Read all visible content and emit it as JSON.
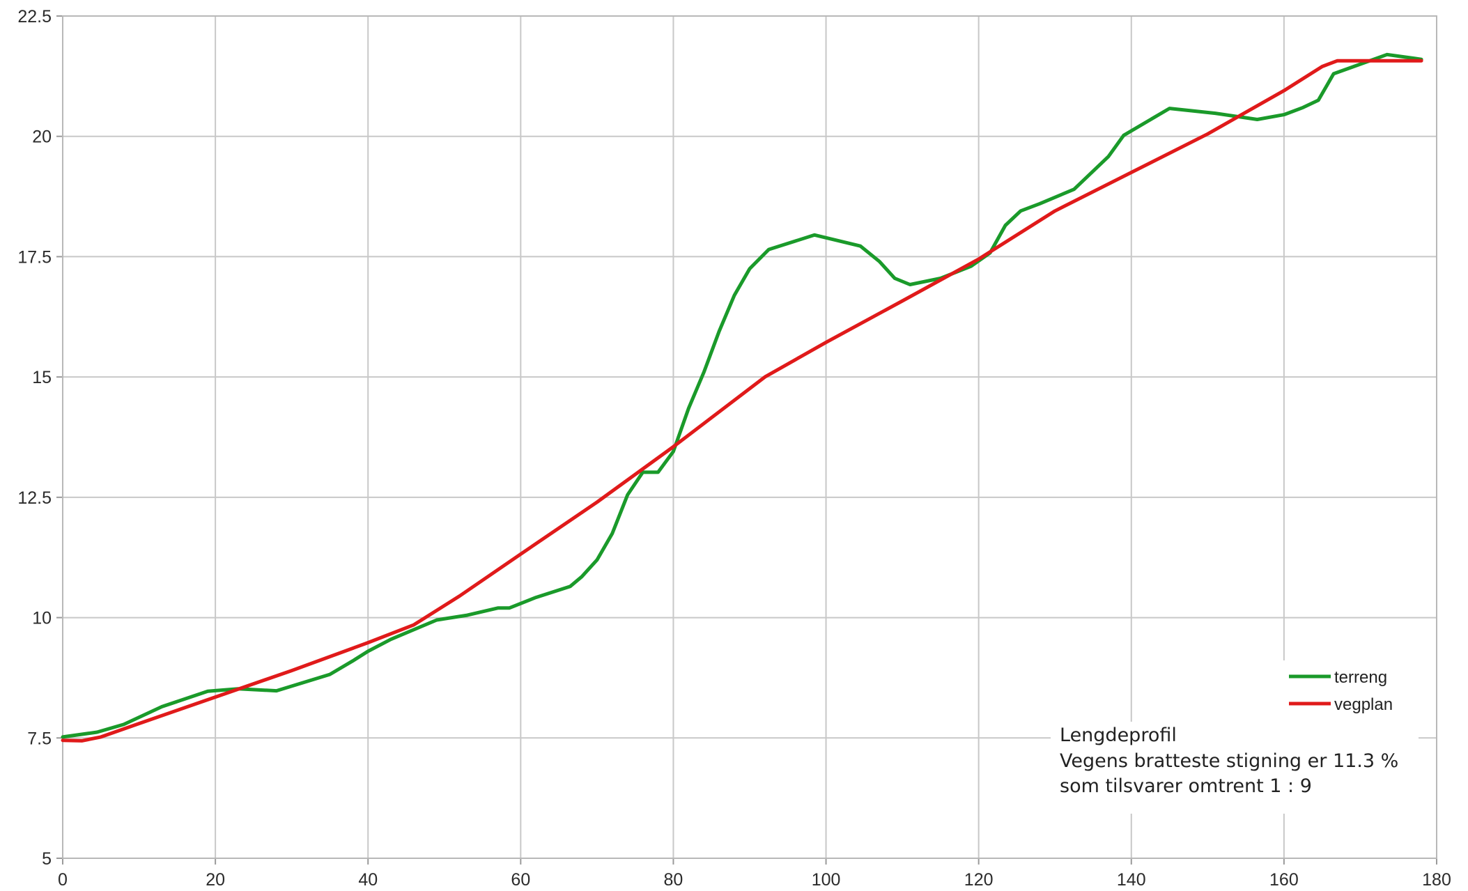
{
  "chart_data": {
    "type": "line",
    "xlim": [
      0,
      180
    ],
    "ylim": [
      5,
      22.5
    ],
    "x_ticks": [
      "0",
      "20",
      "40",
      "60",
      "80",
      "100",
      "120",
      "140",
      "160",
      "180"
    ],
    "y_ticks": [
      "5",
      "7.5",
      "10",
      "12.5",
      "15",
      "17.5",
      "20",
      "22.5"
    ],
    "x_tick_values": [
      0,
      20,
      40,
      60,
      80,
      100,
      120,
      140,
      160,
      180
    ],
    "y_tick_values": [
      5,
      7.5,
      10,
      12.5,
      15,
      17.5,
      20,
      22.5
    ],
    "grid": true,
    "legend_position": "bottom-right",
    "series": [
      {
        "name": "terreng",
        "color": "#1a9a2a",
        "points": [
          [
            0,
            7.52
          ],
          [
            4.5,
            7.62
          ],
          [
            8,
            7.78
          ],
          [
            13,
            8.15
          ],
          [
            19,
            8.47
          ],
          [
            23,
            8.52
          ],
          [
            28,
            8.48
          ],
          [
            35,
            8.82
          ],
          [
            38,
            9.1
          ],
          [
            40,
            9.3
          ],
          [
            43,
            9.55
          ],
          [
            49,
            9.95
          ],
          [
            53,
            10.05
          ],
          [
            57,
            10.2
          ],
          [
            58.5,
            10.2
          ],
          [
            62,
            10.42
          ],
          [
            66.5,
            10.65
          ],
          [
            68,
            10.85
          ],
          [
            70,
            11.2
          ],
          [
            72,
            11.75
          ],
          [
            74,
            12.55
          ],
          [
            76,
            13.02
          ],
          [
            78,
            13.02
          ],
          [
            80,
            13.45
          ],
          [
            82,
            14.35
          ],
          [
            84,
            15.1
          ],
          [
            86,
            15.95
          ],
          [
            88,
            16.7
          ],
          [
            90,
            17.25
          ],
          [
            92.5,
            17.65
          ],
          [
            98.5,
            17.95
          ],
          [
            104.5,
            17.72
          ],
          [
            107,
            17.4
          ],
          [
            109,
            17.05
          ],
          [
            111,
            16.92
          ],
          [
            115,
            17.05
          ],
          [
            119,
            17.3
          ],
          [
            121.5,
            17.58
          ],
          [
            123.5,
            18.15
          ],
          [
            125.5,
            18.45
          ],
          [
            128,
            18.6
          ],
          [
            132.5,
            18.9
          ],
          [
            137,
            19.58
          ],
          [
            139,
            20.02
          ],
          [
            145,
            20.58
          ],
          [
            151,
            20.48
          ],
          [
            156.5,
            20.35
          ],
          [
            160,
            20.45
          ],
          [
            162.5,
            20.6
          ],
          [
            164.5,
            20.75
          ],
          [
            166.5,
            21.3
          ],
          [
            170,
            21.5
          ],
          [
            173.5,
            21.7
          ],
          [
            178,
            21.6
          ]
        ]
      },
      {
        "name": "vegplan",
        "color": "#e01a1a",
        "points": [
          [
            0,
            7.45
          ],
          [
            2.5,
            7.44
          ],
          [
            5,
            7.52
          ],
          [
            10,
            7.8
          ],
          [
            20,
            8.35
          ],
          [
            30,
            8.9
          ],
          [
            40,
            9.48
          ],
          [
            46,
            9.85
          ],
          [
            52,
            10.45
          ],
          [
            60,
            11.32
          ],
          [
            70,
            12.4
          ],
          [
            80,
            13.55
          ],
          [
            92,
            15.0
          ],
          [
            100,
            15.72
          ],
          [
            110,
            16.58
          ],
          [
            120,
            17.45
          ],
          [
            130,
            18.45
          ],
          [
            140,
            19.25
          ],
          [
            150,
            20.05
          ],
          [
            160,
            20.95
          ],
          [
            165,
            21.45
          ],
          [
            167,
            21.57
          ],
          [
            178,
            21.57
          ]
        ]
      }
    ],
    "annotation": [
      "Lengdeprofil",
      "Vegens bratteste stigning er 11.3 %",
      "som tilsvarer omtrent 1 : 9"
    ]
  }
}
